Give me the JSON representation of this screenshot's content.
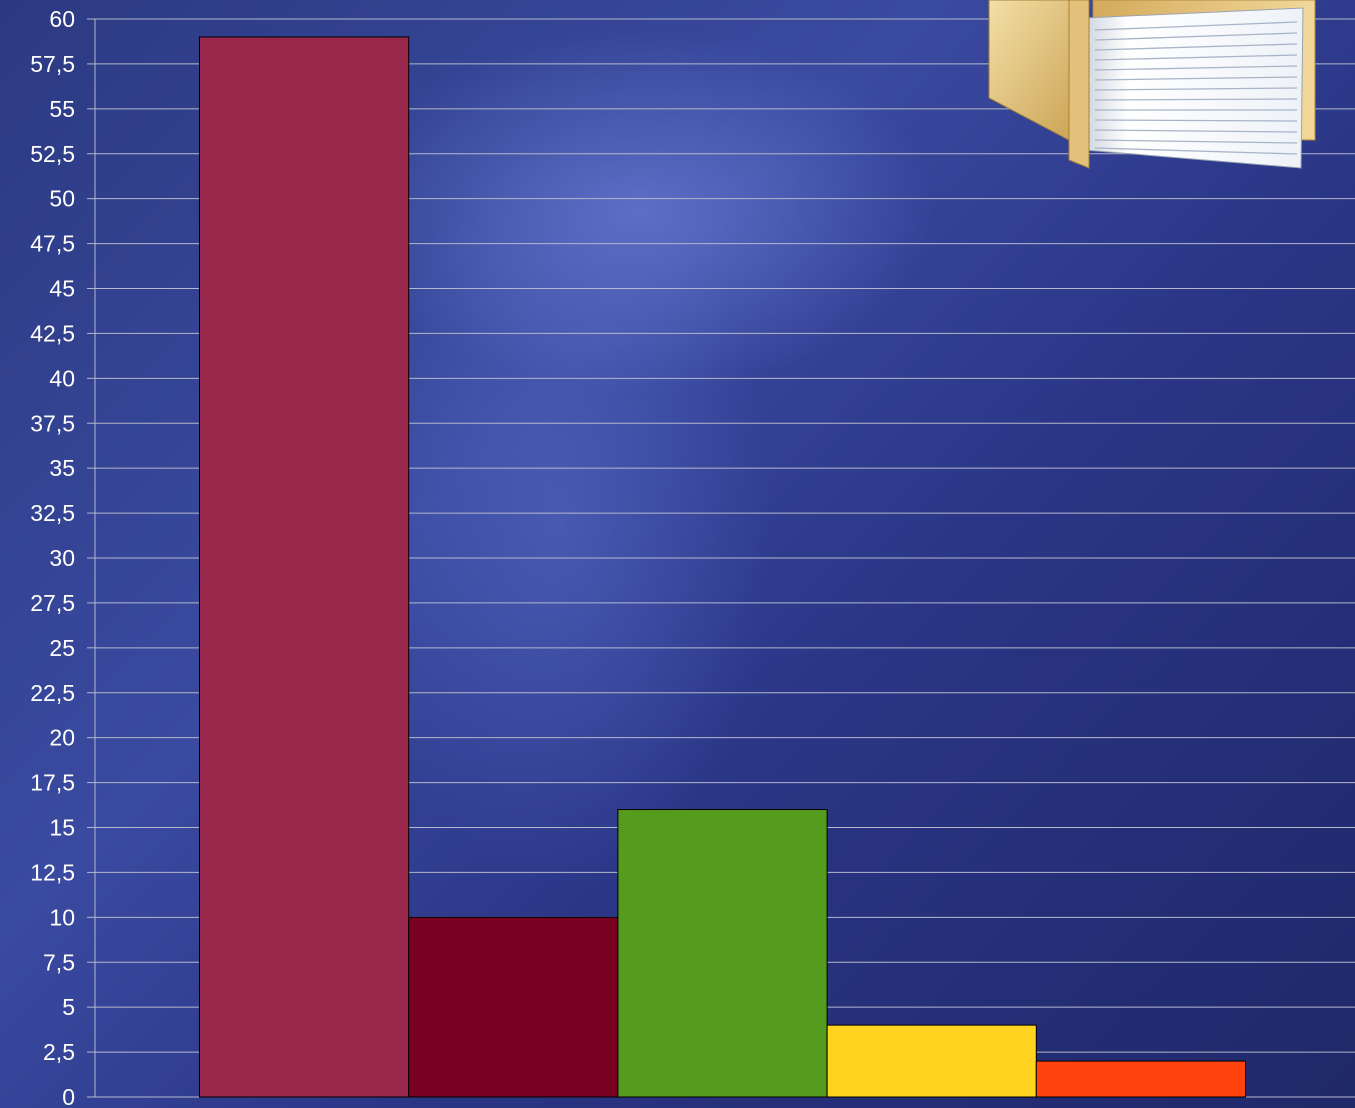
{
  "chart_data": {
    "type": "bar",
    "title": "",
    "xlabel": "",
    "ylabel": "",
    "categories": [
      "",
      "",
      "",
      "",
      ""
    ],
    "values": [
      59,
      10,
      16,
      4,
      2
    ],
    "bar_colors": [
      "#99264b",
      "#7a0022",
      "#559b1e",
      "#ffd320",
      "#ff420e"
    ],
    "ylim": [
      0,
      60
    ],
    "ytick_step": 2.5,
    "yticks": [
      "0",
      "2,5",
      "5",
      "7,5",
      "10",
      "12,5",
      "15",
      "17,5",
      "20",
      "22,5",
      "25",
      "27,5",
      "30",
      "32,5",
      "35",
      "37,5",
      "40",
      "42,5",
      "45",
      "47,5",
      "50",
      "52,5",
      "55",
      "57,5",
      "60"
    ],
    "grid": true,
    "legend": "none"
  },
  "decoration": {
    "icon": "folder-with-documents-icon"
  }
}
